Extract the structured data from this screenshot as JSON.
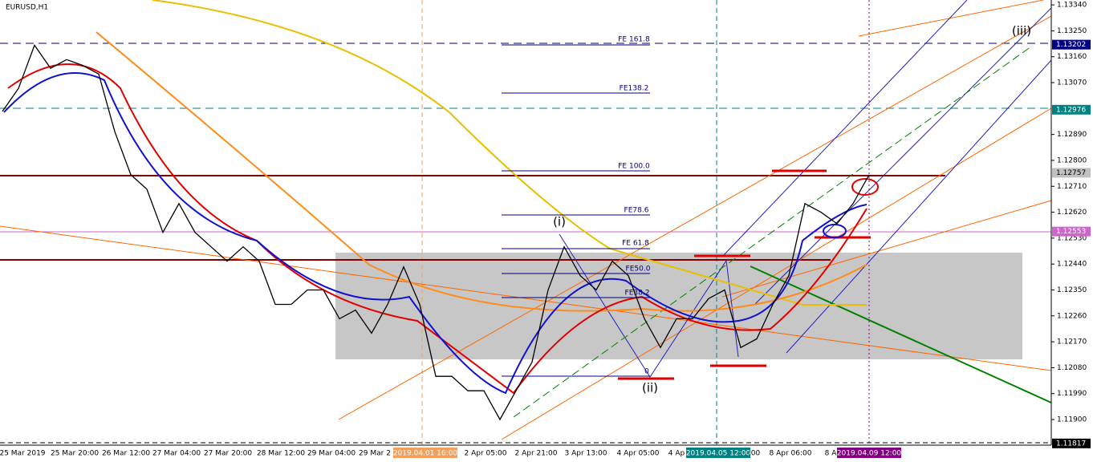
{
  "symbol": "EURUSD,H1",
  "price_axis": {
    "ylim": [
      1.11811,
      1.13357
    ],
    "ticks": [
      {
        "value": 1.1334,
        "label": "1.13340"
      },
      {
        "value": 1.1325,
        "label": "1.13250"
      },
      {
        "value": 1.1316,
        "label": "1.13160"
      },
      {
        "value": 1.1307,
        "label": "1.13070"
      },
      {
        "value": 1.1289,
        "label": "1.12890"
      },
      {
        "value": 1.128,
        "label": "1.12800"
      },
      {
        "value": 1.1271,
        "label": "1.12710"
      },
      {
        "value": 1.1262,
        "label": "1.12620"
      },
      {
        "value": 1.1253,
        "label": "1.12530"
      },
      {
        "value": 1.1244,
        "label": "1.12440"
      },
      {
        "value": 1.1235,
        "label": "1.12350"
      },
      {
        "value": 1.1226,
        "label": "1.12260"
      },
      {
        "value": 1.1217,
        "label": "1.12170"
      },
      {
        "value": 1.1208,
        "label": "1.12080"
      },
      {
        "value": 1.1199,
        "label": "1.11990"
      },
      {
        "value": 1.119,
        "label": "1.11900"
      }
    ],
    "markers": [
      {
        "value": 1.13202,
        "label": "1.13202",
        "color": "#000080"
      },
      {
        "value": 1.12976,
        "label": "1.12976",
        "color": "#008080"
      },
      {
        "value": 1.12757,
        "label": "1.12757",
        "color": "#c0c0c0"
      },
      {
        "value": 1.12553,
        "label": "1.12553",
        "color": "#cc66cc"
      },
      {
        "value": 1.11817,
        "label": "1.11817",
        "color": "#000000"
      }
    ]
  },
  "time_axis": [
    "25 Mar 2019",
    "25 Mar 20:00",
    "26 Mar 12:00",
    "27 Mar 04:00",
    "27 Mar 20:00",
    "28 Mar 12:00",
    "29 Mar 04:00",
    "29 Mar 2",
    "2019.04.01 16:00",
    "2 Apr 05:00",
    "2 Apr 21:00",
    "3 Apr 13:00",
    "4 Apr 05:00",
    "4 Ap",
    "2019.04.05 12:00",
    ":00",
    "8 Apr 06:00",
    "8 A",
    "2019.04.09 12:00"
  ],
  "fib_labels": [
    "FE 161.8",
    "FE138.2",
    "FE 100.0",
    "FE78.6",
    "FE 61.8",
    "FE50.0",
    "FE38.2",
    "0"
  ],
  "wave_labels": [
    "(i)",
    "(ii)",
    "(iii)"
  ],
  "price_path": [
    1.1297,
    1.1305,
    1.132,
    1.1312,
    1.1315,
    1.1313,
    1.131,
    1.129,
    1.1275,
    1.127,
    1.1255,
    1.1265,
    1.1255,
    1.125,
    1.1245,
    1.125,
    1.1245,
    1.123,
    1.123,
    1.1235,
    1.1235,
    1.1225,
    1.1228,
    1.122,
    1.123,
    1.1243,
    1.123,
    1.1205,
    1.1205,
    1.12,
    1.12,
    1.119,
    1.12,
    1.121,
    1.1235,
    1.125,
    1.124,
    1.1235,
    1.1245,
    1.124,
    1.1225,
    1.1215,
    1.1225,
    1.1225,
    1.1232,
    1.1235,
    1.1215,
    1.1218,
    1.123,
    1.124,
    1.1265,
    1.1262,
    1.1258,
    1.1265,
    1.1275
  ]
}
